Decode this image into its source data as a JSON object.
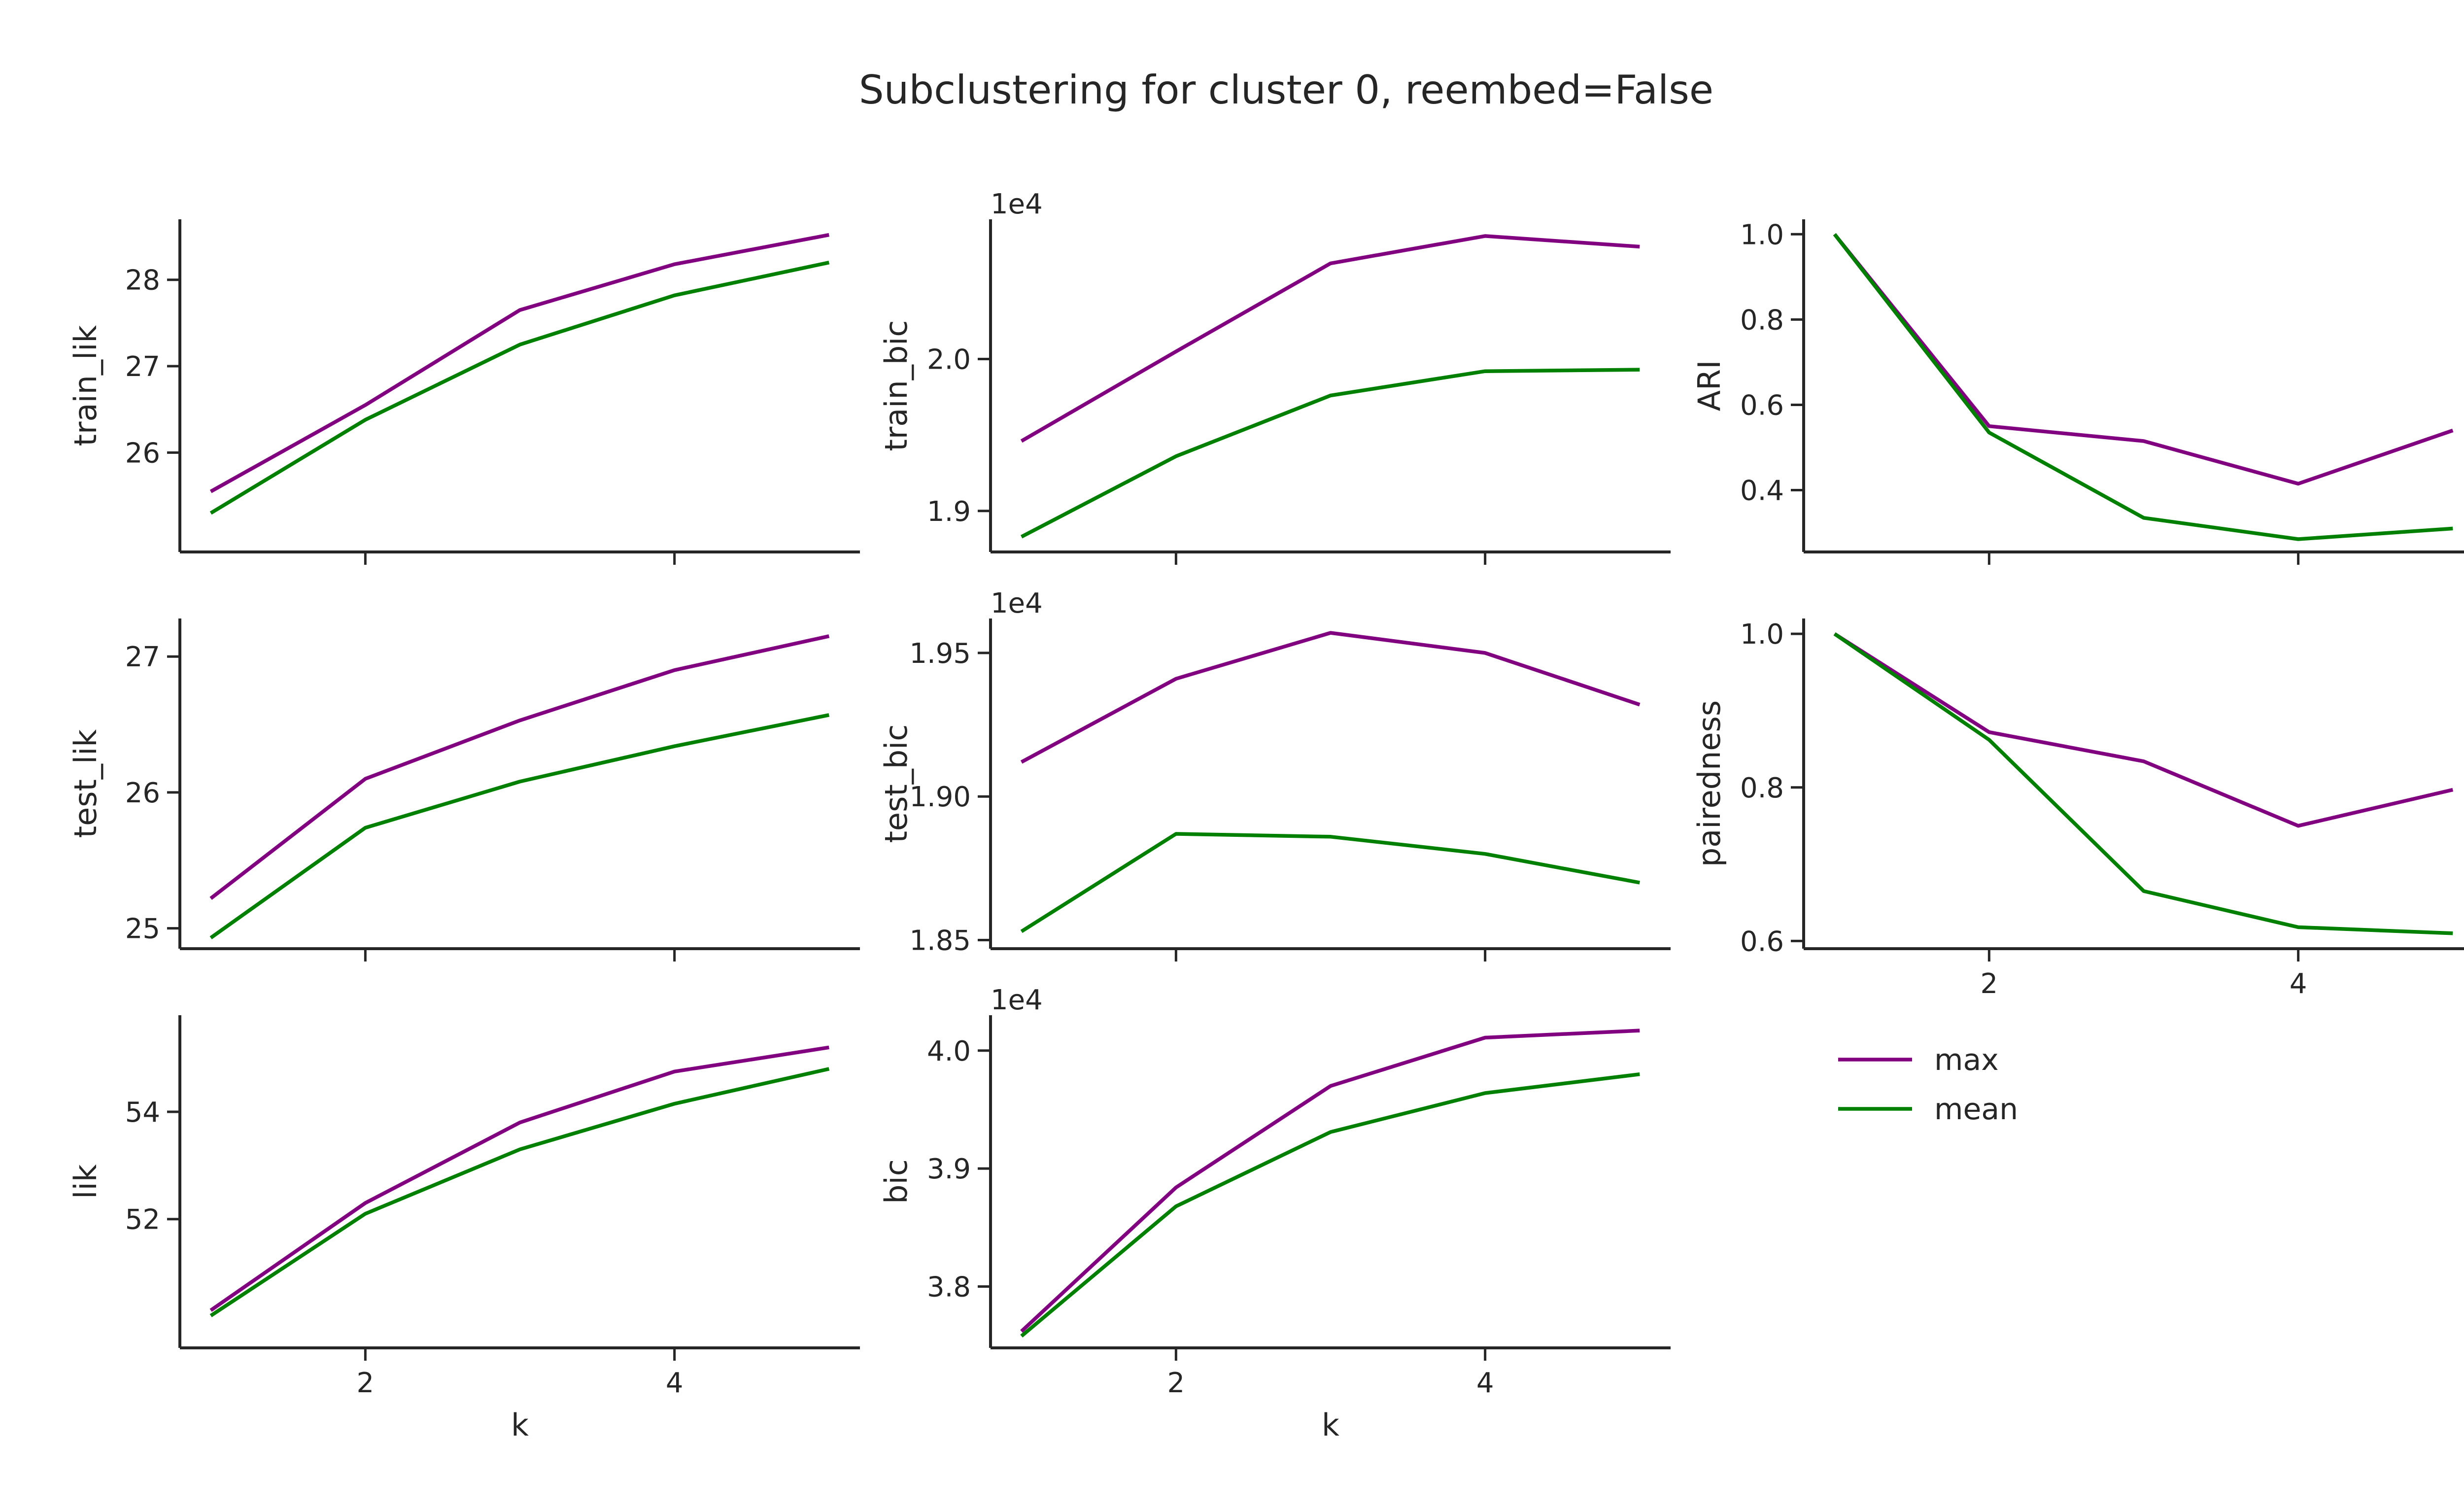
{
  "figure": {
    "title": "Subclustering for cluster 0, reembed=False",
    "series_colors": {
      "max": "#800080",
      "mean": "#008000"
    }
  },
  "legend": {
    "placement": "below-right-column",
    "entries": [
      {
        "name": "max",
        "color": "#800080"
      },
      {
        "name": "mean",
        "color": "#008000"
      }
    ]
  },
  "chart_data": [
    {
      "id": "train_lik",
      "type": "line",
      "row": 0,
      "col": 0,
      "ylabel": "train_lik",
      "xlabel": "",
      "x": [
        1,
        2,
        3,
        4,
        5
      ],
      "xlim": [
        0.8,
        5.2
      ],
      "ylim": [
        24.85,
        28.7
      ],
      "xticks": [
        2,
        4
      ],
      "xtick_labels_visible": false,
      "yticks": [
        26,
        27,
        28
      ],
      "ytick_labels": [
        "26",
        "27",
        "28"
      ],
      "offset_text": "",
      "series": [
        {
          "name": "max",
          "color": "#800080",
          "values": [
            25.55,
            26.55,
            27.65,
            28.18,
            28.52
          ]
        },
        {
          "name": "mean",
          "color": "#008000",
          "values": [
            25.3,
            26.38,
            27.25,
            27.82,
            28.2
          ]
        }
      ]
    },
    {
      "id": "train_bic",
      "type": "line",
      "row": 0,
      "col": 1,
      "ylabel": "train_bic",
      "xlabel": "",
      "x": [
        1,
        2,
        3,
        4,
        5
      ],
      "xlim": [
        0.8,
        5.2
      ],
      "ylim": [
        1.873,
        2.092
      ],
      "xticks": [
        2,
        4
      ],
      "xtick_labels_visible": false,
      "yticks": [
        1.9,
        2.0
      ],
      "ytick_labels": [
        "1.9",
        "2.0"
      ],
      "offset_text": "1e4",
      "series": [
        {
          "name": "max",
          "color": "#800080",
          "values": [
            1.946,
            2.005,
            2.063,
            2.081,
            2.074
          ]
        },
        {
          "name": "mean",
          "color": "#008000",
          "values": [
            1.883,
            1.936,
            1.976,
            1.992,
            1.993
          ]
        }
      ]
    },
    {
      "id": "ARI",
      "type": "line",
      "row": 0,
      "col": 2,
      "ylabel": "ARI",
      "xlabel": "",
      "x": [
        1,
        2,
        3,
        4,
        5
      ],
      "xlim": [
        0.8,
        5.2
      ],
      "ylim": [
        0.255,
        1.035
      ],
      "xticks": [
        2,
        4
      ],
      "xtick_labels_visible": false,
      "yticks": [
        0.4,
        0.6,
        0.8,
        1.0
      ],
      "ytick_labels": [
        "0.4",
        "0.6",
        "0.8",
        "1.0"
      ],
      "offset_text": "",
      "series": [
        {
          "name": "max",
          "color": "#800080",
          "values": [
            1.0,
            0.55,
            0.515,
            0.415,
            0.54
          ]
        },
        {
          "name": "mean",
          "color": "#008000",
          "values": [
            1.0,
            0.535,
            0.335,
            0.285,
            0.31
          ]
        }
      ]
    },
    {
      "id": "test_lik",
      "type": "line",
      "row": 1,
      "col": 0,
      "ylabel": "test_lik",
      "xlabel": "",
      "x": [
        1,
        2,
        3,
        4,
        5
      ],
      "xlim": [
        0.8,
        5.2
      ],
      "ylim": [
        24.85,
        27.28
      ],
      "xticks": [
        2,
        4
      ],
      "xtick_labels_visible": false,
      "yticks": [
        25,
        26,
        27
      ],
      "ytick_labels": [
        "25",
        "26",
        "27"
      ],
      "offset_text": "",
      "series": [
        {
          "name": "max",
          "color": "#800080",
          "values": [
            25.22,
            26.1,
            26.53,
            26.9,
            27.15
          ]
        },
        {
          "name": "mean",
          "color": "#008000",
          "values": [
            24.93,
            25.74,
            26.08,
            26.34,
            26.57
          ]
        }
      ]
    },
    {
      "id": "test_bic",
      "type": "line",
      "row": 1,
      "col": 1,
      "ylabel": "test_bic",
      "xlabel": "",
      "x": [
        1,
        2,
        3,
        4,
        5
      ],
      "xlim": [
        0.8,
        5.2
      ],
      "ylim": [
        1.847,
        1.962
      ],
      "xticks": [
        2,
        4
      ],
      "xtick_labels_visible": false,
      "yticks": [
        1.85,
        1.9,
        1.95
      ],
      "ytick_labels": [
        "1.85",
        "1.90",
        "1.95"
      ],
      "offset_text": "1e4",
      "series": [
        {
          "name": "max",
          "color": "#800080",
          "values": [
            1.912,
            1.941,
            1.957,
            1.95,
            1.932
          ]
        },
        {
          "name": "mean",
          "color": "#008000",
          "values": [
            1.853,
            1.887,
            1.886,
            1.88,
            1.87
          ]
        }
      ]
    },
    {
      "id": "pairedness",
      "type": "line",
      "row": 1,
      "col": 2,
      "ylabel": "pairedness",
      "xlabel": "",
      "x": [
        1,
        2,
        3,
        4,
        5
      ],
      "xlim": [
        0.8,
        5.2
      ],
      "ylim": [
        0.59,
        1.02
      ],
      "xticks": [
        2,
        4
      ],
      "xtick_labels_visible": true,
      "yticks": [
        0.6,
        0.8,
        1.0
      ],
      "ytick_labels": [
        "0.6",
        "0.8",
        "1.0"
      ],
      "offset_text": "",
      "series": [
        {
          "name": "max",
          "color": "#800080",
          "values": [
            1.0,
            0.872,
            0.834,
            0.75,
            0.797
          ]
        },
        {
          "name": "mean",
          "color": "#008000",
          "values": [
            1.0,
            0.862,
            0.665,
            0.618,
            0.61
          ]
        }
      ]
    },
    {
      "id": "lik",
      "type": "line",
      "row": 2,
      "col": 0,
      "ylabel": "lik",
      "xlabel": "k",
      "x": [
        1,
        2,
        3,
        4,
        5
      ],
      "xlim": [
        0.8,
        5.2
      ],
      "ylim": [
        49.6,
        55.8
      ],
      "xticks": [
        2,
        4
      ],
      "xtick_labels_visible": true,
      "yticks": [
        52,
        54
      ],
      "ytick_labels": [
        "52",
        "54"
      ],
      "offset_text": "",
      "series": [
        {
          "name": "max",
          "color": "#800080",
          "values": [
            50.3,
            52.3,
            53.8,
            54.75,
            55.2
          ]
        },
        {
          "name": "mean",
          "color": "#008000",
          "values": [
            50.2,
            52.1,
            53.3,
            54.15,
            54.8
          ]
        }
      ]
    },
    {
      "id": "bic",
      "type": "line",
      "row": 2,
      "col": 1,
      "ylabel": "bic",
      "xlabel": "k",
      "x": [
        1,
        2,
        3,
        4,
        5
      ],
      "xlim": [
        0.8,
        5.2
      ],
      "ylim": [
        3.748,
        4.03
      ],
      "xticks": [
        2,
        4
      ],
      "xtick_labels_visible": true,
      "yticks": [
        3.8,
        3.9,
        4.0
      ],
      "ytick_labels": [
        "3.8",
        "3.9",
        "4.0"
      ],
      "offset_text": "1e4",
      "series": [
        {
          "name": "max",
          "color": "#800080",
          "values": [
            3.762,
            3.884,
            3.97,
            4.011,
            4.017
          ]
        },
        {
          "name": "mean",
          "color": "#008000",
          "values": [
            3.758,
            3.868,
            3.931,
            3.964,
            3.98
          ]
        }
      ]
    }
  ]
}
